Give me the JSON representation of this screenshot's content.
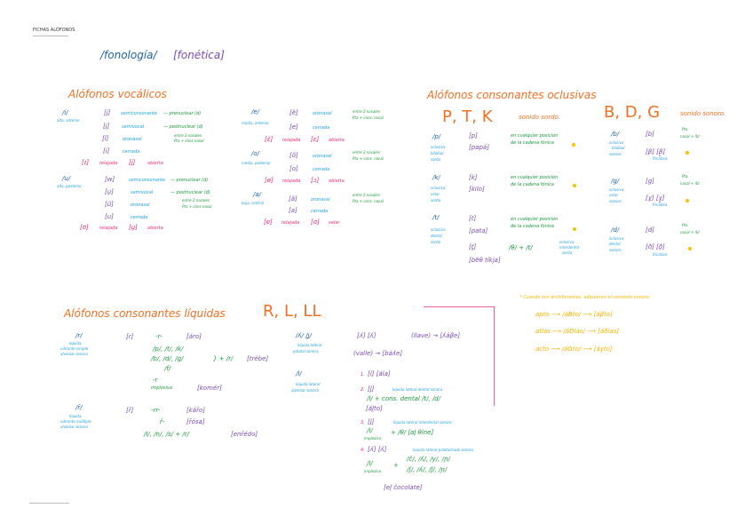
{
  "header": {
    "title": "FICHAS ALÓFONOS"
  },
  "top": {
    "fonologia": "/fonología/",
    "fonetica": "[fonética]"
  },
  "vocalicos": {
    "title": "Alófonos vocálicos",
    "i": {
      "phoneme": "/i/",
      "desc": "alta, anterior",
      "rows": [
        "[j]",
        "semiconsonante",
        "— prenuclear (d)",
        "[i̯]",
        "semivocal",
        "— postnuclear (d)",
        "[ĩ]",
        "oronasal",
        "entre 2 nasales",
        "Pta + cons nasal",
        "[i]",
        "cerrada",
        "[ɪ]",
        "relajada",
        "[i̞]",
        "abierta"
      ]
    },
    "u": {
      "phoneme": "/u/",
      "desc": "alta, posterior",
      "rows": [
        "[w]",
        "semiconsonante",
        "— prenuclear (d)",
        "[u̯]",
        "semivocal",
        "— postnuclear (d)",
        "[ũ]",
        "oronasal",
        "entre 2 nasales",
        "Pta + cons nasal",
        "[u]",
        "cerrada",
        "[ʊ]",
        "relajada",
        "[u̞]",
        "abierta"
      ]
    },
    "e": {
      "phoneme": "/e/",
      "desc": "media, anterior",
      "rows": [
        "[ẽ]",
        "oronasal",
        "entre 2 nasales",
        "Pta + cons. nasal",
        "[e]",
        "cerrada",
        "[ɛ̆]",
        "relajada",
        "[ɛ]",
        "abierta"
      ]
    },
    "o": {
      "phoneme": "/o/",
      "desc": "media, posterior",
      "rows": [
        "[õ]",
        "oronasal",
        "entre 2 nasales",
        "Pta + cons. nasal",
        "[o]",
        "cerrada",
        "[ɵ]",
        "relajada",
        "[ɔ]",
        "abierta"
      ]
    },
    "a": {
      "phoneme": "/a/",
      "desc": "baja, central",
      "rows": [
        "[ã]",
        "oronasal",
        "entre 2 nasales",
        "Pta + cons. nasal",
        "[a]",
        "cerrada",
        "[ɐ]",
        "relajada",
        "[ɑ]",
        "velar"
      ]
    }
  },
  "oclusivas": {
    "title": "Alófonos consonantes oclusivas",
    "ptk": "P, T, K",
    "ptk_note": "sonido sordo.",
    "p": {
      "phoneme": "/p/",
      "desc": [
        "oclusiva",
        "bilabial",
        "sorda"
      ],
      "a": "[p]",
      "ex": "[papá]"
    },
    "k": {
      "phoneme": "/k/",
      "desc": [
        "oclusiva",
        "velar",
        "sorda"
      ],
      "a": "[k]",
      "ex": "[kilo]"
    },
    "t": {
      "phoneme": "/t/",
      "desc": [
        "oclusiva",
        "dental",
        "sorda"
      ],
      "a": "[t]",
      "ex": "[pata]",
      "b": "[t̪]",
      "rule": "/θ/ + /t/",
      "bdesc": [
        "oclusiva",
        "interdental",
        "sorda"
      ],
      "bex": "[bẽθ tíkja]"
    },
    "anywhere": [
      "en cualquier posición",
      "de la cadena fónica"
    ],
    "bdg": "B, D, G",
    "bdg_note": "sonido sonoro.",
    "b": {
      "phoneme": "/b/",
      "desc": [
        "oclusiva",
        "bilabial",
        "sonoro"
      ],
      "a": "[b]",
      "rule": [
        "Pta",
        "nasal + /b/"
      ],
      "fr": "[β] [β̞]",
      "frl": "fricativa"
    },
    "g": {
      "phoneme": "/g/",
      "desc": [
        "oclusiva",
        "velar",
        "sonoro"
      ],
      "a": "[g]",
      "rule": [
        "Pta",
        "nasal + /b/"
      ],
      "fr": "[ɣ] [ɣ̞]",
      "frl": "fricativa"
    },
    "d": {
      "phoneme": "/d/",
      "desc": [
        "oclusiva",
        "dental",
        "sonoro"
      ],
      "a": "[d]",
      "rule": [
        "Pta",
        "nasal + /b/"
      ],
      "fr": "[ð] [ð̞]",
      "frl": "fricativa"
    }
  },
  "liquidas": {
    "title": "Alófonos consonantes líquidas",
    "rll": "R, L, LL",
    "r": {
      "phoneme": "/r/",
      "desc": [
        "líquida,",
        "vibrante simple",
        "alveolar sonora"
      ],
      "a": "[r]",
      "r1": "-r-",
      "ex1": "[áro]",
      "g1": "/p/, /t/, /k/",
      "g2": "/b/, /d/, /g/",
      "g3": "/f/",
      "plus": "} + /r/",
      "ex2": "[trébe]",
      "imp1": "-r",
      "imp2": "implosiva",
      "ex3": "[komér]"
    },
    "rr": {
      "phoneme": "/r̄/",
      "desc": [
        "líquida,",
        "vibrante múltiple",
        "alveolar sonora"
      ],
      "a": "[r̄]",
      "r1": "-rr-",
      "ex1": "[kár̄o]",
      "r2": "r̄-",
      "ex2": "[r̄ósa]",
      "r3": "/l/, /n/, /s/ + /r/",
      "ex3": "[enr̄édo]"
    },
    "ll": {
      "phoneme": "/ʎ/ /ʝ/",
      "desc": [
        "líquida lateral",
        "palatal sonora"
      ],
      "a": "[ʎ]  [ʎ]",
      "ex1": "(llave) → [ʎáβe]",
      "ex2": "(valle) → [báʎe]"
    },
    "l": {
      "phoneme": "/l/",
      "desc": [
        "líquida lateral",
        "alveolar sonora"
      ],
      "n1": "1.",
      "a1": "[l]  [ála]",
      "n2": "2.",
      "a2": "[l̪]",
      "d2": "líquida lateral dental sonora",
      "r2": "/l/ + cons. dental /t/, /d/",
      "ex2": "[ál̪to]",
      "n3": "3.",
      "a3": "[l̟]",
      "d3": "líquida lateral interdental sonora",
      "r3a": "/l/",
      "r3b": "implosiva",
      "r3c": "+ /θ/   [al̟ θíne]",
      "n4": "4.",
      "a4": "[ʎ] [ʎ]",
      "d4": "líquida lateral palatalizado sonoro",
      "r4a": "/l/",
      "r4b": "implosiva",
      "r4c": "+",
      "r4d": "/ĉ/, /ʎ/, /y/, /ɲ/",
      "r4e": "/ʃ/, /ʎ/, /ǰ/, /ɲ/",
      "ex4": "[el̯ ĉocolate]"
    }
  },
  "archifonemas": {
    "note": "* Cuando son archifonemas, adquieren el contexto sonoro.",
    "ex": [
      "apto ⟶ /áBto/ ⟶ [áβto]",
      "atlas ⟶ /áDlas/ ⟶ [áðlas]",
      "acto ⟶ /áGto/ ⟶ [áɣto]"
    ]
  },
  "colors": {
    "orange": "#f36f21",
    "blue": "#1d62a8",
    "light_blue": "#1ea0e0",
    "purple": "#7a4bb5",
    "green": "#18993b",
    "pink": "#ee2a7b",
    "yellow": "#f5b400"
  }
}
